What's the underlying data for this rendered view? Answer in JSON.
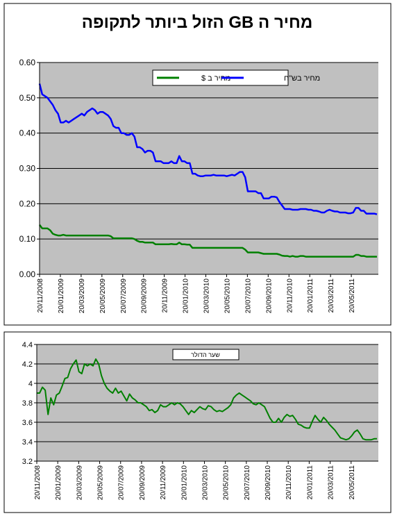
{
  "chart_data": [
    {
      "type": "line",
      "title": "מחיר ה GB הזול ביותר לתקופה",
      "xlabel": "",
      "ylabel": "",
      "x_tick_labels": [
        "20/11/2008",
        "20/01/2009",
        "20/03/2009",
        "20/05/2009",
        "20/07/2009",
        "20/09/2009",
        "20/11/2009",
        "20/01/2010",
        "20/03/2010",
        "20/05/2010",
        "20/07/2010",
        "20/09/2010",
        "20/11/2010",
        "20/01/2011",
        "20/03/2011",
        "20/05/2011"
      ],
      "y_tick_labels": [
        "0.00",
        "0.10",
        "0.20",
        "0.30",
        "0.40",
        "0.50",
        "0.60"
      ],
      "ylim": [
        0,
        0.6
      ],
      "grid": true,
      "legend_position": "top-center",
      "colors": {
        "plot_bg": "#c0c0c0",
        "series_blue": "#0000ff",
        "series_green": "#008000"
      },
      "series": [
        {
          "name": "מחיר בש\"ח",
          "color": "#0000ff",
          "values": [
            0.54,
            0.51,
            0.505,
            0.5,
            0.49,
            0.48,
            0.465,
            0.455,
            0.43,
            0.43,
            0.435,
            0.43,
            0.435,
            0.44,
            0.445,
            0.45,
            0.455,
            0.45,
            0.46,
            0.465,
            0.47,
            0.465,
            0.455,
            0.46,
            0.46,
            0.455,
            0.45,
            0.44,
            0.42,
            0.415,
            0.415,
            0.4,
            0.4,
            0.395,
            0.395,
            0.4,
            0.39,
            0.36,
            0.36,
            0.355,
            0.345,
            0.35,
            0.35,
            0.345,
            0.32,
            0.32,
            0.32,
            0.315,
            0.315,
            0.315,
            0.32,
            0.315,
            0.315,
            0.335,
            0.32,
            0.32,
            0.315,
            0.315,
            0.285,
            0.285,
            0.28,
            0.278,
            0.278,
            0.28,
            0.28,
            0.28,
            0.282,
            0.28,
            0.28,
            0.28,
            0.28,
            0.278,
            0.28,
            0.282,
            0.28,
            0.285,
            0.29,
            0.29,
            0.275,
            0.235,
            0.235,
            0.235,
            0.235,
            0.23,
            0.23,
            0.215,
            0.215,
            0.215,
            0.22,
            0.22,
            0.218,
            0.205,
            0.195,
            0.185,
            0.185,
            0.185,
            0.183,
            0.183,
            0.183,
            0.185,
            0.185,
            0.185,
            0.183,
            0.183,
            0.18,
            0.18,
            0.178,
            0.175,
            0.175,
            0.18,
            0.183,
            0.18,
            0.178,
            0.178,
            0.175,
            0.175,
            0.175,
            0.173,
            0.173,
            0.175,
            0.188,
            0.188,
            0.18,
            0.18,
            0.172,
            0.172,
            0.172,
            0.172,
            0.17
          ]
        },
        {
          "name": "מחיר ב $",
          "color": "#008000",
          "values": [
            0.14,
            0.13,
            0.13,
            0.13,
            0.125,
            0.115,
            0.112,
            0.11,
            0.11,
            0.112,
            0.11,
            0.11,
            0.11,
            0.11,
            0.11,
            0.11,
            0.11,
            0.11,
            0.11,
            0.11,
            0.11,
            0.11,
            0.11,
            0.11,
            0.11,
            0.11,
            0.11,
            0.108,
            0.102,
            0.102,
            0.102,
            0.102,
            0.102,
            0.102,
            0.102,
            0.102,
            0.1,
            0.095,
            0.092,
            0.092,
            0.09,
            0.09,
            0.09,
            0.09,
            0.085,
            0.085,
            0.085,
            0.085,
            0.085,
            0.085,
            0.086,
            0.085,
            0.085,
            0.09,
            0.085,
            0.085,
            0.084,
            0.084,
            0.075,
            0.075,
            0.075,
            0.075,
            0.075,
            0.075,
            0.075,
            0.075,
            0.075,
            0.075,
            0.075,
            0.075,
            0.075,
            0.075,
            0.075,
            0.075,
            0.075,
            0.075,
            0.075,
            0.075,
            0.07,
            0.062,
            0.062,
            0.062,
            0.062,
            0.062,
            0.06,
            0.058,
            0.058,
            0.058,
            0.058,
            0.058,
            0.058,
            0.056,
            0.053,
            0.052,
            0.052,
            0.05,
            0.052,
            0.05,
            0.05,
            0.052,
            0.052,
            0.05,
            0.05,
            0.05,
            0.05,
            0.05,
            0.05,
            0.05,
            0.05,
            0.05,
            0.05,
            0.05,
            0.05,
            0.05,
            0.05,
            0.05,
            0.05,
            0.05,
            0.05,
            0.05,
            0.055,
            0.055,
            0.052,
            0.052,
            0.05,
            0.05,
            0.05,
            0.05,
            0.05
          ]
        }
      ]
    },
    {
      "type": "line",
      "title": "",
      "xlabel": "",
      "ylabel": "",
      "x_tick_labels": [
        "20/11/2008",
        "20/01/2009",
        "20/03/2009",
        "20/05/2009",
        "20/07/2009",
        "20/09/2009",
        "20/11/2009",
        "20/01/2010",
        "20/03/2010",
        "20/05/2010",
        "20/07/2010",
        "20/09/2010",
        "20/11/2010",
        "20/01/2011",
        "20/03/2011",
        "20/05/2011"
      ],
      "y_tick_labels": [
        "3.2",
        "3.4",
        "3.6",
        "3.8",
        "4",
        "4.2",
        "4.4"
      ],
      "ylim": [
        3.2,
        4.4
      ],
      "grid": true,
      "legend_position": "top-left",
      "colors": {
        "plot_bg": "#c0c0c0",
        "series_green": "#008000"
      },
      "series": [
        {
          "name": "שער הדולר",
          "color": "#008000",
          "values": [
            3.9,
            3.9,
            3.96,
            3.93,
            3.68,
            3.85,
            3.78,
            3.88,
            3.9,
            3.97,
            4.05,
            4.06,
            4.15,
            4.2,
            4.24,
            4.12,
            4.1,
            4.2,
            4.18,
            4.2,
            4.18,
            4.25,
            4.2,
            4.08,
            4.0,
            3.95,
            3.92,
            3.9,
            3.95,
            3.9,
            3.92,
            3.87,
            3.82,
            3.89,
            3.85,
            3.83,
            3.8,
            3.8,
            3.78,
            3.76,
            3.72,
            3.73,
            3.7,
            3.72,
            3.78,
            3.76,
            3.76,
            3.78,
            3.8,
            3.78,
            3.8,
            3.79,
            3.76,
            3.72,
            3.68,
            3.72,
            3.7,
            3.73,
            3.76,
            3.74,
            3.73,
            3.77,
            3.76,
            3.73,
            3.71,
            3.72,
            3.71,
            3.73,
            3.75,
            3.78,
            3.85,
            3.88,
            3.9,
            3.88,
            3.86,
            3.84,
            3.82,
            3.79,
            3.78,
            3.8,
            3.78,
            3.76,
            3.7,
            3.64,
            3.6,
            3.6,
            3.64,
            3.6,
            3.65,
            3.68,
            3.66,
            3.67,
            3.63,
            3.58,
            3.57,
            3.55,
            3.54,
            3.54,
            3.61,
            3.67,
            3.63,
            3.6,
            3.65,
            3.62,
            3.58,
            3.55,
            3.52,
            3.48,
            3.44,
            3.43,
            3.42,
            3.43,
            3.46,
            3.5,
            3.52,
            3.48,
            3.43,
            3.42,
            3.42,
            3.42,
            3.43,
            3.43
          ]
        }
      ]
    }
  ]
}
